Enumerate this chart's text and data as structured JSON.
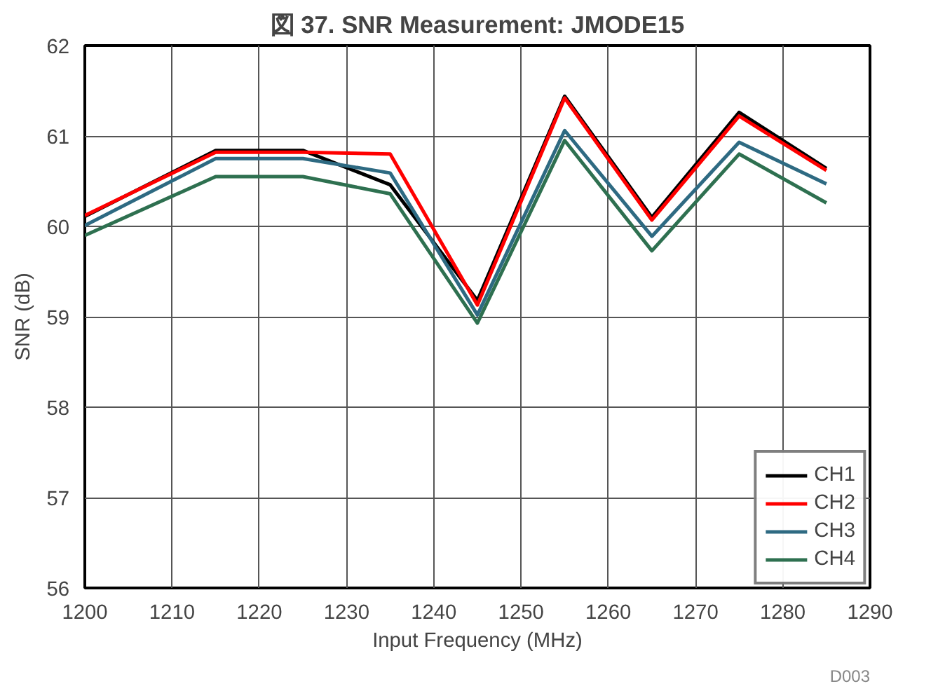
{
  "chart_data": {
    "type": "line",
    "title": "図 37. SNR Measurement: JMODE15",
    "xlabel": "Input Frequency (MHz)",
    "ylabel": "SNR (dB)",
    "x": [
      1200,
      1215,
      1225,
      1235,
      1245,
      1255,
      1265,
      1275,
      1285
    ],
    "series": [
      {
        "name": "CH1",
        "color": "#000000",
        "values": [
          60.11,
          60.84,
          60.84,
          60.46,
          59.18,
          61.44,
          60.1,
          61.26,
          60.64
        ]
      },
      {
        "name": "CH2",
        "color": "#ff0000",
        "values": [
          60.12,
          60.82,
          60.82,
          60.8,
          59.13,
          61.42,
          60.07,
          61.22,
          60.62
        ]
      },
      {
        "name": "CH3",
        "color": "#2e6a82",
        "values": [
          60.01,
          60.75,
          60.75,
          60.59,
          59.02,
          61.06,
          59.89,
          60.93,
          60.47
        ]
      },
      {
        "name": "CH4",
        "color": "#2e7050",
        "values": [
          59.9,
          60.55,
          60.55,
          60.36,
          58.93,
          60.95,
          59.73,
          60.8,
          60.26
        ]
      }
    ],
    "xlim": [
      1200,
      1290
    ],
    "xticks": [
      1200,
      1210,
      1220,
      1230,
      1240,
      1250,
      1260,
      1270,
      1280,
      1290
    ],
    "ylim": [
      56,
      62
    ],
    "yticks": [
      56,
      57,
      58,
      59,
      60,
      61,
      62
    ],
    "grid": true,
    "legend": "bottom right",
    "line_style": "solid",
    "marker": "none",
    "annotations": [
      "D003"
    ]
  }
}
